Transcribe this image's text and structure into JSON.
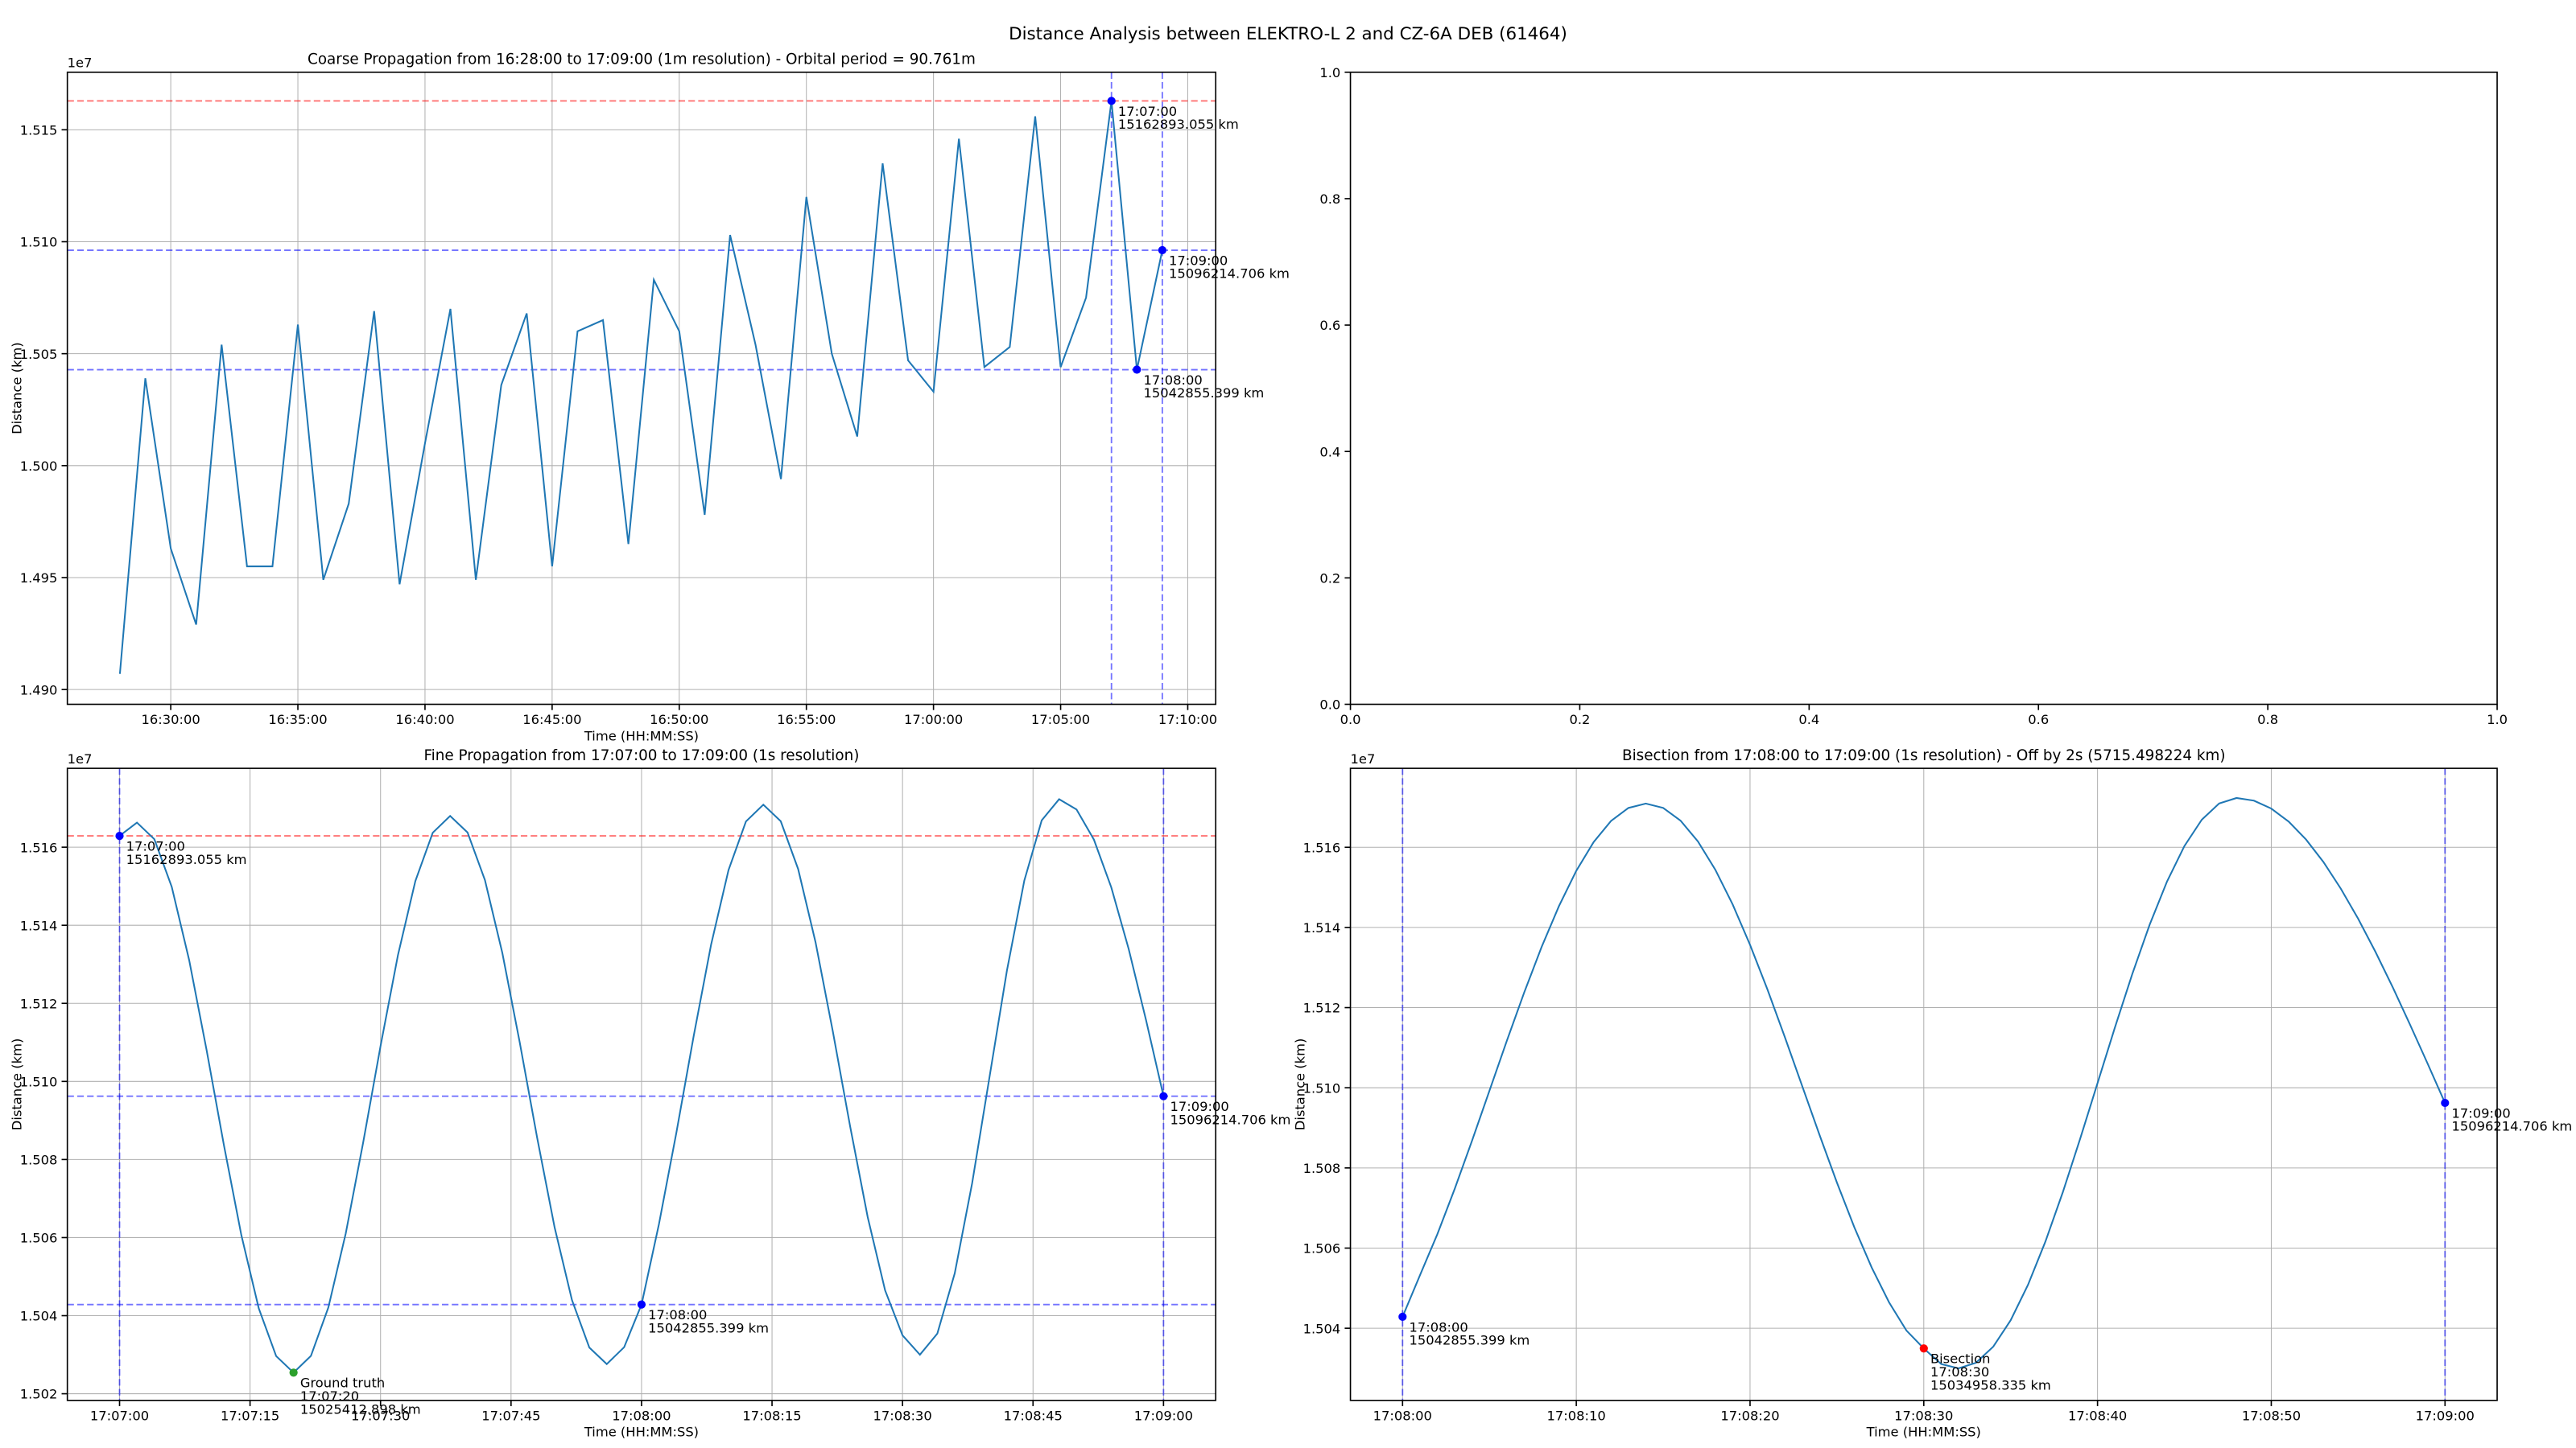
{
  "title": "Distance Analysis between ELEKTRO-L 2 and CZ-6A DEB (61464)",
  "chart_data": [
    {
      "type": "line",
      "title": "Coarse Propagation from 16:28:00 to 17:09:00 (1m resolution) - Orbital period = 90.761m",
      "xlabel": "Time (HH:MM:SS)",
      "ylabel": "Distance (km)",
      "y_offset_label": "1e7",
      "grid": true,
      "color": "#1f77b4",
      "x": [
        "16:28:00",
        "16:29:00",
        "16:30:00",
        "16:31:00",
        "16:32:00",
        "16:33:00",
        "16:34:00",
        "16:35:00",
        "16:36:00",
        "16:37:00",
        "16:38:00",
        "16:39:00",
        "16:40:00",
        "16:41:00",
        "16:42:00",
        "16:43:00",
        "16:44:00",
        "16:45:00",
        "16:46:00",
        "16:47:00",
        "16:48:00",
        "16:49:00",
        "16:50:00",
        "16:51:00",
        "16:52:00",
        "16:53:00",
        "16:54:00",
        "16:55:00",
        "16:56:00",
        "16:57:00",
        "16:58:00",
        "16:59:00",
        "17:00:00",
        "17:01:00",
        "17:02:00",
        "17:03:00",
        "17:04:00",
        "17:05:00",
        "17:06:00",
        "17:07:00",
        "17:08:00",
        "17:09:00"
      ],
      "values": [
        14907000,
        15039000,
        14963000,
        14929000,
        15054000,
        14955000,
        14955000,
        15063000,
        14949000,
        14983000,
        15069000,
        14947000,
        15010000,
        15070000,
        14949000,
        15036000,
        15068000,
        14955000,
        15060000,
        15065000,
        14965000,
        15083000,
        15060000,
        14978000,
        15103000,
        15054000,
        14994000,
        15120000,
        15050000,
        15013000,
        15135000,
        15047000,
        15033000,
        15146000,
        15044000,
        15053000,
        15156000,
        15044000,
        15075000,
        15162893.055,
        15042855.399,
        15096214.706
      ],
      "xlim": [
        "16:25:56",
        "17:11:06"
      ],
      "xticks": [
        "16:30:00",
        "16:35:00",
        "16:40:00",
        "16:45:00",
        "16:50:00",
        "16:55:00",
        "17:00:00",
        "17:05:00",
        "17:10:00"
      ],
      "ylim": [
        14893400,
        15175700
      ],
      "yticks": [
        {
          "value": 14900000,
          "label": "1.490"
        },
        {
          "value": 14950000,
          "label": "1.495"
        },
        {
          "value": 15000000,
          "label": "1.500"
        },
        {
          "value": 15050000,
          "label": "1.505"
        },
        {
          "value": 15100000,
          "label": "1.510"
        },
        {
          "value": 15150000,
          "label": "1.515"
        }
      ],
      "hlines": [
        {
          "value": 15162893.055,
          "color": "#ff0000"
        },
        {
          "value": 15096214.706,
          "color": "#0000ff"
        },
        {
          "value": 15042855.399,
          "color": "#0000ff"
        }
      ],
      "vlines": [
        {
          "value": "17:07:00",
          "color": "#0000ff"
        },
        {
          "value": "17:09:00",
          "color": "#0000ff"
        }
      ],
      "annotations": [
        {
          "x": "17:07:00",
          "y": 15162893.055,
          "color": "#0000ff",
          "label": [
            "17:07:00",
            "15162893.055 km"
          ]
        },
        {
          "x": "17:08:00",
          "y": 15042855.399,
          "color": "#0000ff",
          "label": [
            "17:08:00",
            "15042855.399 km"
          ]
        },
        {
          "x": "17:09:00",
          "y": 15096214.706,
          "color": "#0000ff",
          "label": [
            "17:09:00",
            "15096214.706 km"
          ]
        }
      ]
    },
    {
      "type": "line",
      "grid": false,
      "xlim": [
        0,
        1
      ],
      "ylim": [
        0,
        1
      ],
      "xticks": [
        {
          "value": 0,
          "label": "0.0"
        },
        {
          "value": 0.2,
          "label": "0.2"
        },
        {
          "value": 0.4,
          "label": "0.4"
        },
        {
          "value": 0.6,
          "label": "0.6"
        },
        {
          "value": 0.8,
          "label": "0.8"
        },
        {
          "value": 1,
          "label": "1.0"
        }
      ],
      "yticks": [
        {
          "value": 0,
          "label": "0.0"
        },
        {
          "value": 0.2,
          "label": "0.2"
        },
        {
          "value": 0.4,
          "label": "0.4"
        },
        {
          "value": 0.6,
          "label": "0.6"
        },
        {
          "value": 0.8,
          "label": "0.8"
        },
        {
          "value": 1,
          "label": "1.0"
        }
      ]
    },
    {
      "type": "line",
      "title": "Fine Propagation from 17:07:00 to 17:09:00 (1s resolution)",
      "xlabel": "Time (HH:MM:SS)",
      "ylabel": "Distance (km)",
      "y_offset_label": "1e7",
      "grid": true,
      "color": "#1f77b4",
      "x": [
        "17:07:00",
        "17:07:02",
        "17:07:04",
        "17:07:06",
        "17:07:08",
        "17:07:10",
        "17:07:12",
        "17:07:14",
        "17:07:16",
        "17:07:18",
        "17:07:20",
        "17:07:22",
        "17:07:24",
        "17:07:26",
        "17:07:28",
        "17:07:30",
        "17:07:32",
        "17:07:34",
        "17:07:36",
        "17:07:38",
        "17:07:40",
        "17:07:42",
        "17:07:44",
        "17:07:46",
        "17:07:48",
        "17:07:50",
        "17:07:52",
        "17:07:54",
        "17:07:56",
        "17:07:58",
        "17:08:00",
        "17:08:02",
        "17:08:04",
        "17:08:06",
        "17:08:08",
        "17:08:10",
        "17:08:12",
        "17:08:14",
        "17:08:16",
        "17:08:18",
        "17:08:20",
        "17:08:22",
        "17:08:24",
        "17:08:26",
        "17:08:28",
        "17:08:30",
        "17:08:32",
        "17:08:34",
        "17:08:36",
        "17:08:38",
        "17:08:40",
        "17:08:42",
        "17:08:44",
        "17:08:46",
        "17:08:48",
        "17:08:50",
        "17:08:52",
        "17:08:54",
        "17:08:56",
        "17:08:58",
        "17:09:00"
      ],
      "values": [
        15162893.055,
        15166300,
        15162050,
        15149820,
        15131080,
        15108090,
        15083620,
        15060630,
        15041890,
        15029660,
        15025412.898,
        15029710,
        15042090,
        15061060,
        15084330,
        15109080,
        15132350,
        15151320,
        15163700,
        15168000,
        15163770,
        15151580,
        15132900,
        15109990,
        15085610,
        15062700,
        15044020,
        15031830,
        15027600,
        15031920,
        15042855.399,
        15063430,
        15086810,
        15111690,
        15135080,
        15154140,
        15166580,
        15170900,
        15166650,
        15154420,
        15135670,
        15112680,
        15088220,
        15065220,
        15046480,
        15034958.335,
        15030000,
        15035420,
        15050840,
        15073920,
        15101150,
        15128380,
        15151460,
        15166880,
        15172300,
        15169660,
        15161940,
        15149690,
        15133880,
        15115620,
        15096214.706
      ],
      "xlim": [
        "17:06:54",
        "17:09:06"
      ],
      "xticks": [
        "17:07:00",
        "17:07:15",
        "17:07:30",
        "17:07:45",
        "17:08:00",
        "17:08:15",
        "17:08:30",
        "17:08:45",
        "17:09:00"
      ],
      "ylim": [
        15018300,
        15180200
      ],
      "yticks": [
        {
          "value": 15020000,
          "label": "1.502"
        },
        {
          "value": 15040000,
          "label": "1.504"
        },
        {
          "value": 15060000,
          "label": "1.506"
        },
        {
          "value": 15080000,
          "label": "1.508"
        },
        {
          "value": 15100000,
          "label": "1.510"
        },
        {
          "value": 15120000,
          "label": "1.512"
        },
        {
          "value": 15140000,
          "label": "1.514"
        },
        {
          "value": 15160000,
          "label": "1.516"
        }
      ],
      "hlines": [
        {
          "value": 15162893.055,
          "color": "#ff0000"
        },
        {
          "value": 15096214.706,
          "color": "#0000ff"
        },
        {
          "value": 15042855.399,
          "color": "#0000ff"
        }
      ],
      "vlines": [
        {
          "value": "17:07:00",
          "color": "#0000ff"
        },
        {
          "value": "17:09:00",
          "color": "#0000ff"
        }
      ],
      "annotations": [
        {
          "x": "17:07:00",
          "y": 15162893.055,
          "color": "#0000ff",
          "label": [
            "17:07:00",
            "15162893.055 km"
          ]
        },
        {
          "x": "17:08:00",
          "y": 15042855.399,
          "color": "#0000ff",
          "label": [
            "17:08:00",
            "15042855.399 km"
          ]
        },
        {
          "x": "17:09:00",
          "y": 15096214.706,
          "color": "#0000ff",
          "label": [
            "17:09:00",
            "15096214.706 km"
          ]
        },
        {
          "x": "17:07:20",
          "y": 15025412.898,
          "color": "#2ca02c",
          "label": [
            "Ground truth",
            "17:07:20",
            "15025412.898 km"
          ]
        }
      ]
    },
    {
      "type": "line",
      "title": "Bisection from 17:08:00 to 17:09:00 (1s resolution) - Off by 2s (5715.498224 km)",
      "xlabel": "Time (HH:MM:SS)",
      "ylabel": "Distance (km)",
      "y_offset_label": "1e7",
      "grid": true,
      "color": "#1f77b4",
      "x": [
        "17:08:00",
        "17:08:01",
        "17:08:02",
        "17:08:03",
        "17:08:04",
        "17:08:05",
        "17:08:06",
        "17:08:07",
        "17:08:08",
        "17:08:09",
        "17:08:10",
        "17:08:11",
        "17:08:12",
        "17:08:13",
        "17:08:14",
        "17:08:15",
        "17:08:16",
        "17:08:17",
        "17:08:18",
        "17:08:19",
        "17:08:20",
        "17:08:21",
        "17:08:22",
        "17:08:23",
        "17:08:24",
        "17:08:25",
        "17:08:26",
        "17:08:27",
        "17:08:28",
        "17:08:29",
        "17:08:30",
        "17:08:31",
        "17:08:32",
        "17:08:33",
        "17:08:34",
        "17:08:35",
        "17:08:36",
        "17:08:37",
        "17:08:38",
        "17:08:39",
        "17:08:40",
        "17:08:41",
        "17:08:42",
        "17:08:43",
        "17:08:44",
        "17:08:45",
        "17:08:46",
        "17:08:47",
        "17:08:48",
        "17:08:49",
        "17:08:50",
        "17:08:51",
        "17:08:52",
        "17:08:53",
        "17:08:54",
        "17:08:55",
        "17:08:56",
        "17:08:57",
        "17:08:58",
        "17:08:59",
        "17:09:00"
      ],
      "values": [
        15042855.399,
        15053200,
        15063430,
        15074740,
        15086810,
        15099250,
        15111690,
        15123760,
        15135080,
        15145310,
        15154140,
        15161300,
        15166580,
        15169810,
        15170900,
        15169830,
        15166650,
        15161460,
        15154420,
        15145730,
        15135670,
        15124550,
        15112680,
        15100450,
        15088220,
        15076350,
        15065220,
        15055170,
        15046480,
        15039440,
        15034958.335,
        15031070,
        15030000,
        15031370,
        15035420,
        15041990,
        15050840,
        15061620,
        15073920,
        15087270,
        15101150,
        15115030,
        15128380,
        15140680,
        15151460,
        15160310,
        15166880,
        15170930,
        15172300,
        15171640,
        15169660,
        15166410,
        15161940,
        15156340,
        15149690,
        15142180,
        15133880,
        15124980,
        15115620,
        15106010,
        15096214.706
      ],
      "xlim": [
        "17:07:57",
        "17:09:03"
      ],
      "xticks": [
        "17:08:00",
        "17:08:10",
        "17:08:20",
        "17:08:30",
        "17:08:40",
        "17:08:50",
        "17:09:00"
      ],
      "ylim": [
        15022000,
        15179700
      ],
      "yticks": [
        {
          "value": 15040000,
          "label": "1.504"
        },
        {
          "value": 15060000,
          "label": "1.506"
        },
        {
          "value": 15080000,
          "label": "1.508"
        },
        {
          "value": 15100000,
          "label": "1.510"
        },
        {
          "value": 15120000,
          "label": "1.512"
        },
        {
          "value": 15140000,
          "label": "1.514"
        },
        {
          "value": 15160000,
          "label": "1.516"
        }
      ],
      "vlines": [
        {
          "value": "17:08:00",
          "color": "#0000ff"
        },
        {
          "value": "17:09:00",
          "color": "#0000ff"
        }
      ],
      "annotations": [
        {
          "x": "17:08:00",
          "y": 15042855.399,
          "color": "#0000ff",
          "label": [
            "17:08:00",
            "15042855.399 km"
          ]
        },
        {
          "x": "17:09:00",
          "y": 15096214.706,
          "color": "#0000ff",
          "label": [
            "17:09:00",
            "15096214.706 km"
          ]
        },
        {
          "x": "17:08:30",
          "y": 15034958.335,
          "color": "#ff0000",
          "label": [
            "Bisection",
            "17:08:30",
            "15034958.335 km"
          ]
        }
      ]
    }
  ]
}
